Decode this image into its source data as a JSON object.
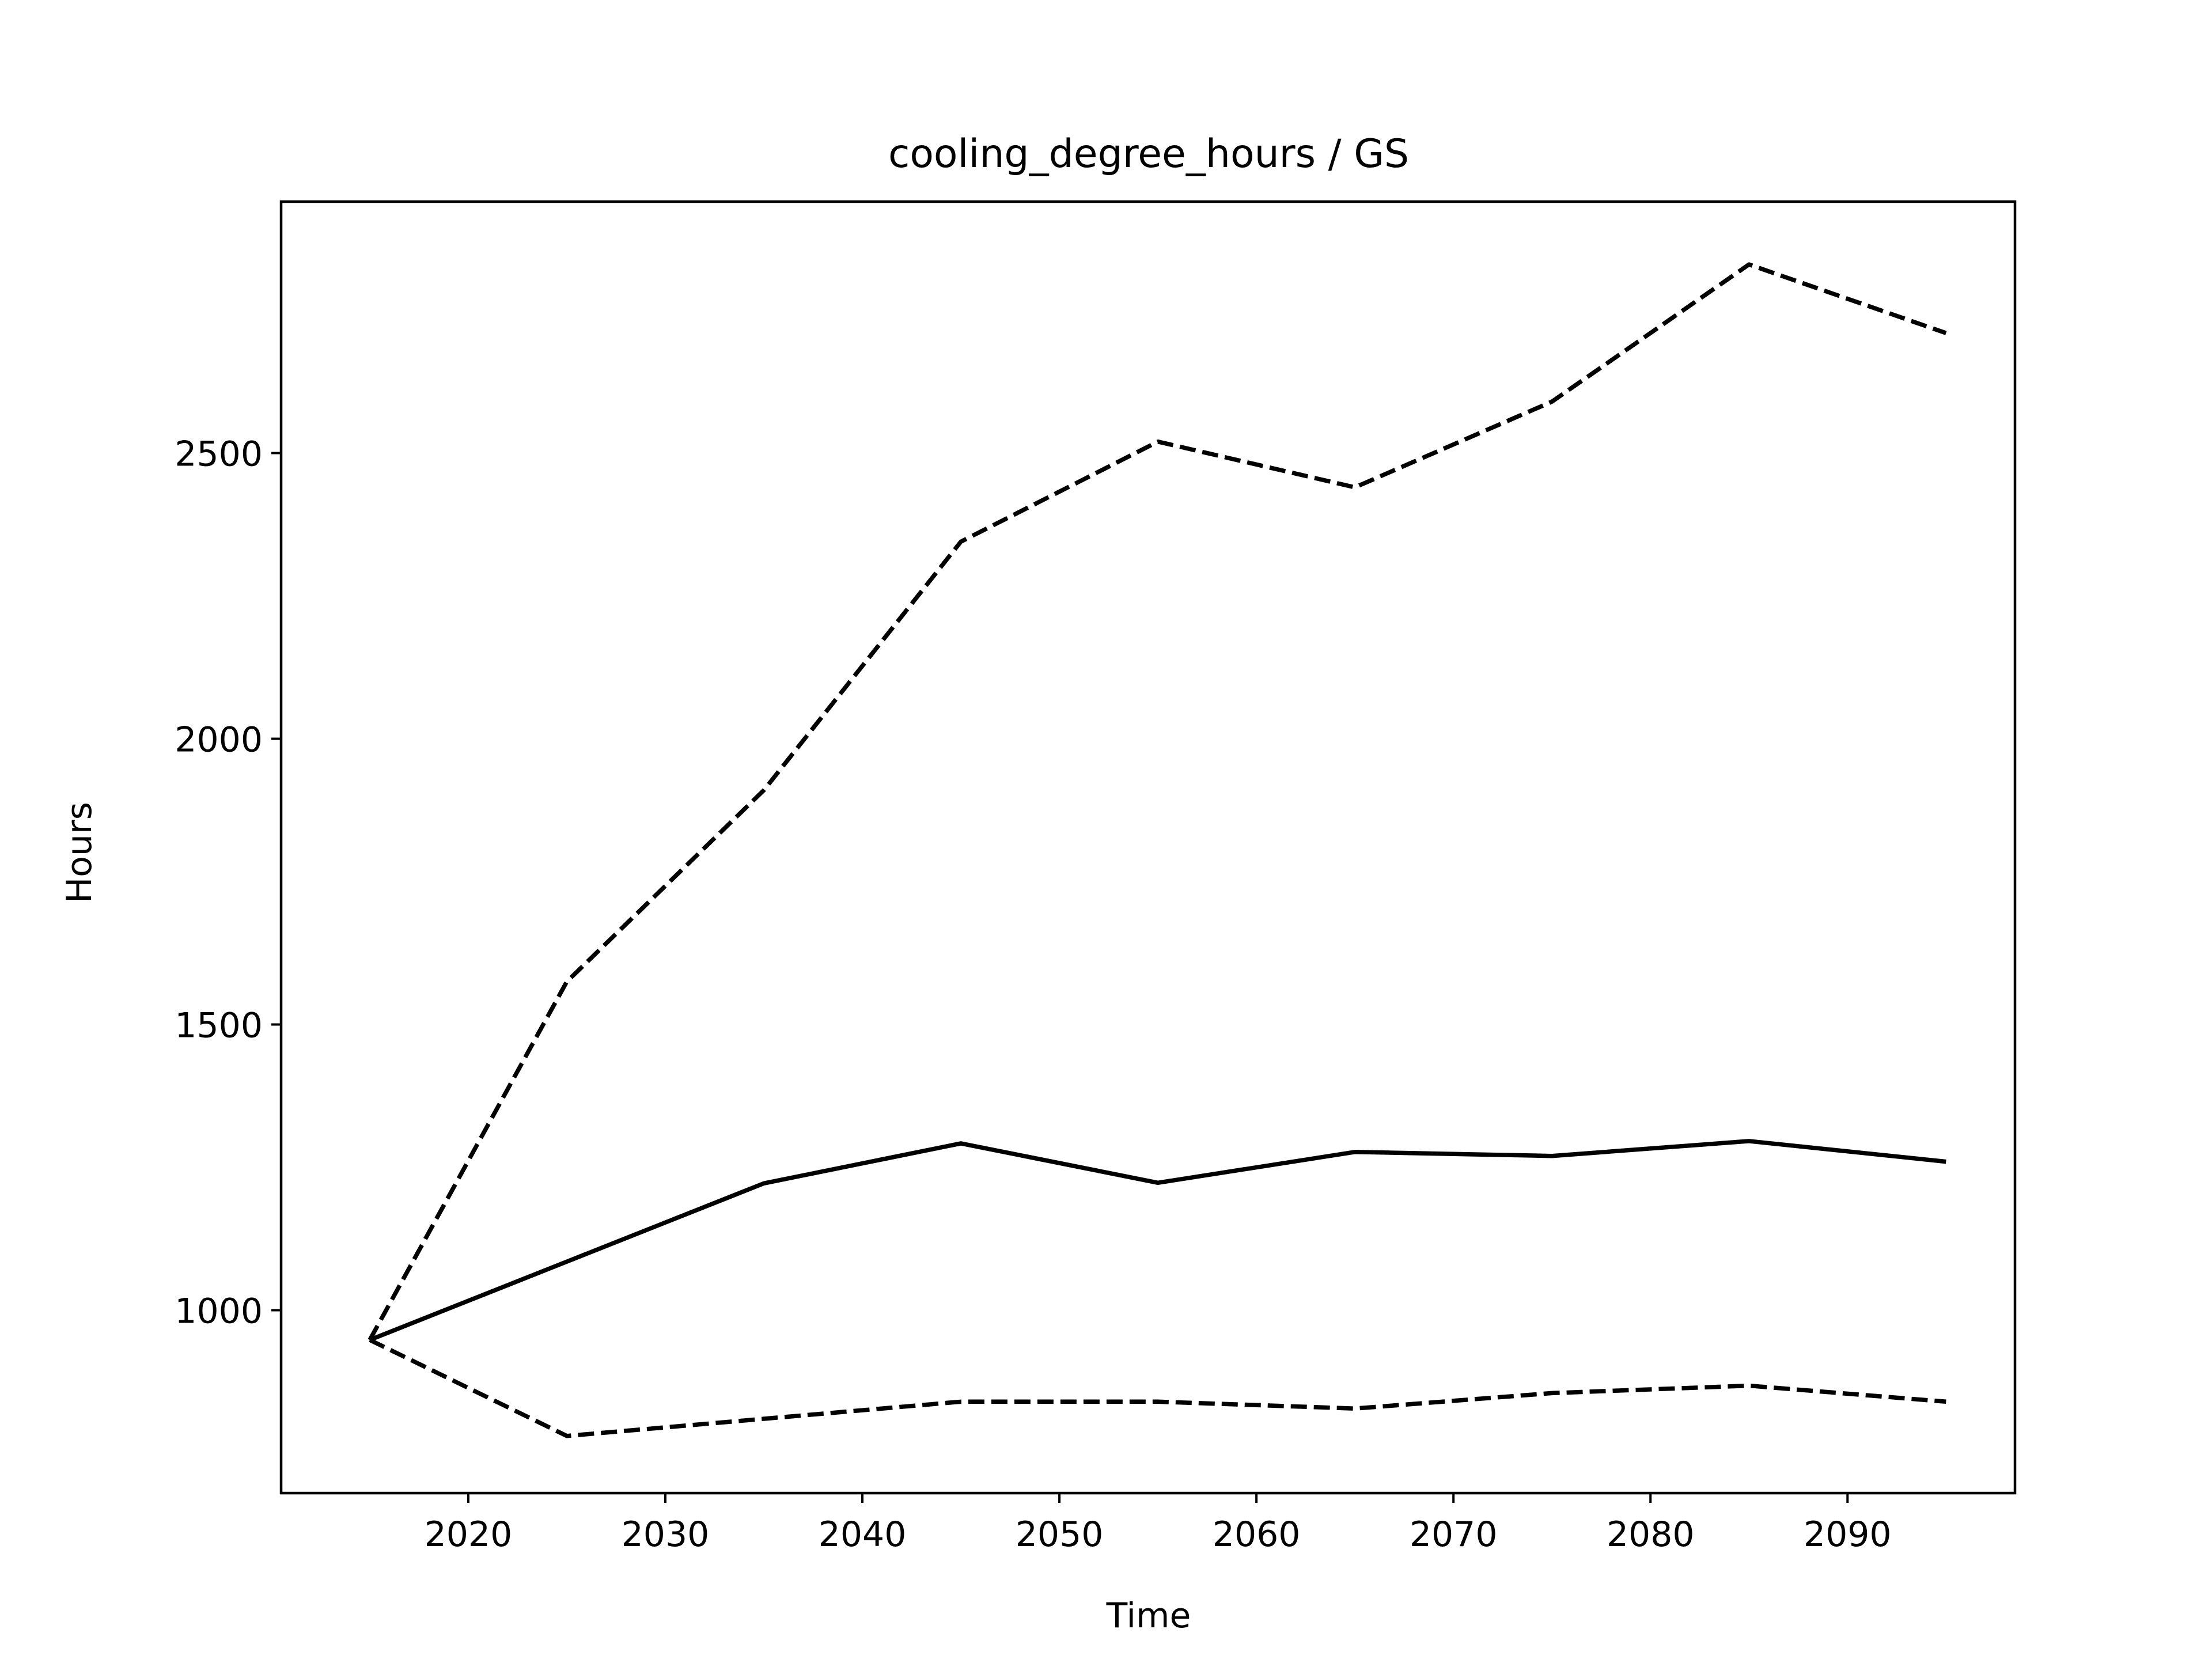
{
  "chart_data": {
    "type": "line",
    "title": "cooling_degree_hours / GS",
    "xlabel": "Time",
    "ylabel": "Hours",
    "xlim": [
      2010.5,
      2098.5
    ],
    "ylim": [
      680,
      2940
    ],
    "x_ticks": [
      2020,
      2030,
      2040,
      2050,
      2060,
      2070,
      2080,
      2090
    ],
    "y_ticks": [
      1000,
      1500,
      2000,
      2500
    ],
    "x": [
      2015,
      2025,
      2035,
      2045,
      2055,
      2065,
      2075,
      2085,
      2095
    ],
    "grid": false,
    "legend": "none",
    "series": [
      {
        "style": "dashed",
        "color": "#000000",
        "values": [
          948,
          1575,
          1910,
          2345,
          2520,
          2440,
          2590,
          2830,
          2710
        ]
      },
      {
        "style": "solid",
        "color": "#000000",
        "values": [
          948,
          1085,
          1222,
          1292,
          1223,
          1277,
          1270,
          1296,
          1260
        ]
      },
      {
        "style": "dashed",
        "color": "#000000",
        "values": [
          948,
          780,
          810,
          840,
          840,
          828,
          855,
          868,
          840
        ]
      }
    ]
  }
}
